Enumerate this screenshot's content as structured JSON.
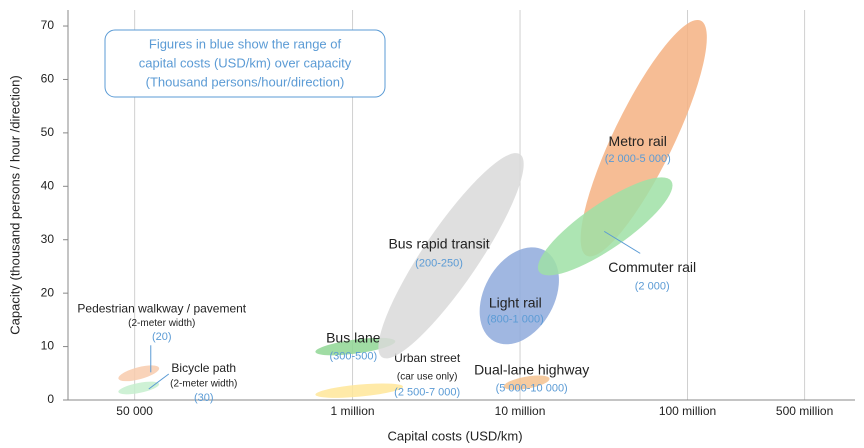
{
  "chart_data": {
    "type": "ellipse",
    "xlabel": "Capital costs (USD/km)",
    "ylabel": "Capacity (thousand persons / hour /direction)",
    "annotation": [
      "Figures in blue show the range of",
      "capital costs (USD/km) over capacity",
      "(Thousand persons/hour/direction)"
    ],
    "xscale": "log",
    "xlim": [
      20000,
      1000000000
    ],
    "xticks": [
      {
        "value": 50000,
        "label": "50 000"
      },
      {
        "value": 1000000,
        "label": "1 million"
      },
      {
        "value": 10000000,
        "label": "10 million"
      },
      {
        "value": 100000000,
        "label": "100 million"
      },
      {
        "value": 500000000,
        "label": "500 million"
      }
    ],
    "ylim": [
      0,
      73
    ],
    "yticks": [
      0,
      10,
      20,
      30,
      40,
      50,
      60,
      70
    ],
    "grid": true,
    "modes": [
      {
        "name": "Pedestrian walkway / pavement",
        "note": "(2-meter width)",
        "range": "(20)",
        "color": "#f8cbad",
        "x": [
          40000,
          70000
        ],
        "y": [
          4,
          6
        ]
      },
      {
        "name": "Bicycle path",
        "note": "(2-meter width)",
        "range": "(30)",
        "color": "#c6efce",
        "x": [
          40000,
          70000
        ],
        "y": [
          1.5,
          3
        ]
      },
      {
        "name": "Bus lane",
        "range": "(300-500)",
        "color": "#8fd694",
        "x": [
          600000,
          1800000
        ],
        "y": [
          9,
          11
        ]
      },
      {
        "name": "Urban street",
        "note": "(car use only)",
        "range": "(2 500-7 000)",
        "color": "#ffe699",
        "x": [
          600000,
          2000000
        ],
        "y": [
          1,
          2.5
        ]
      },
      {
        "name": "Bus rapid transit",
        "range": "(200-250)",
        "color": "#d9d9d9",
        "x": [
          1500000,
          10000000
        ],
        "y": [
          8,
          46
        ]
      },
      {
        "name": "Light rail",
        "range": "(800-1 000)",
        "color": "#8faadc",
        "x": [
          7000000,
          14000000
        ],
        "y": [
          11,
          28
        ]
      },
      {
        "name": "Dual-lane highway",
        "range": "(5 000-10 000)",
        "color": "#f4c28f",
        "x": [
          8000000,
          15000000
        ],
        "y": [
          2.5,
          4
        ]
      },
      {
        "name": "Metro rail",
        "range": "(2 000-5 000)",
        "color": "#f4b183",
        "x": [
          25000000,
          120000000
        ],
        "y": [
          27,
          71
        ]
      },
      {
        "name": "Commuter rail",
        "range": "(2 000)",
        "color": "#9fe0a6",
        "x": [
          13000000,
          80000000
        ],
        "y": [
          24,
          41
        ]
      }
    ]
  }
}
